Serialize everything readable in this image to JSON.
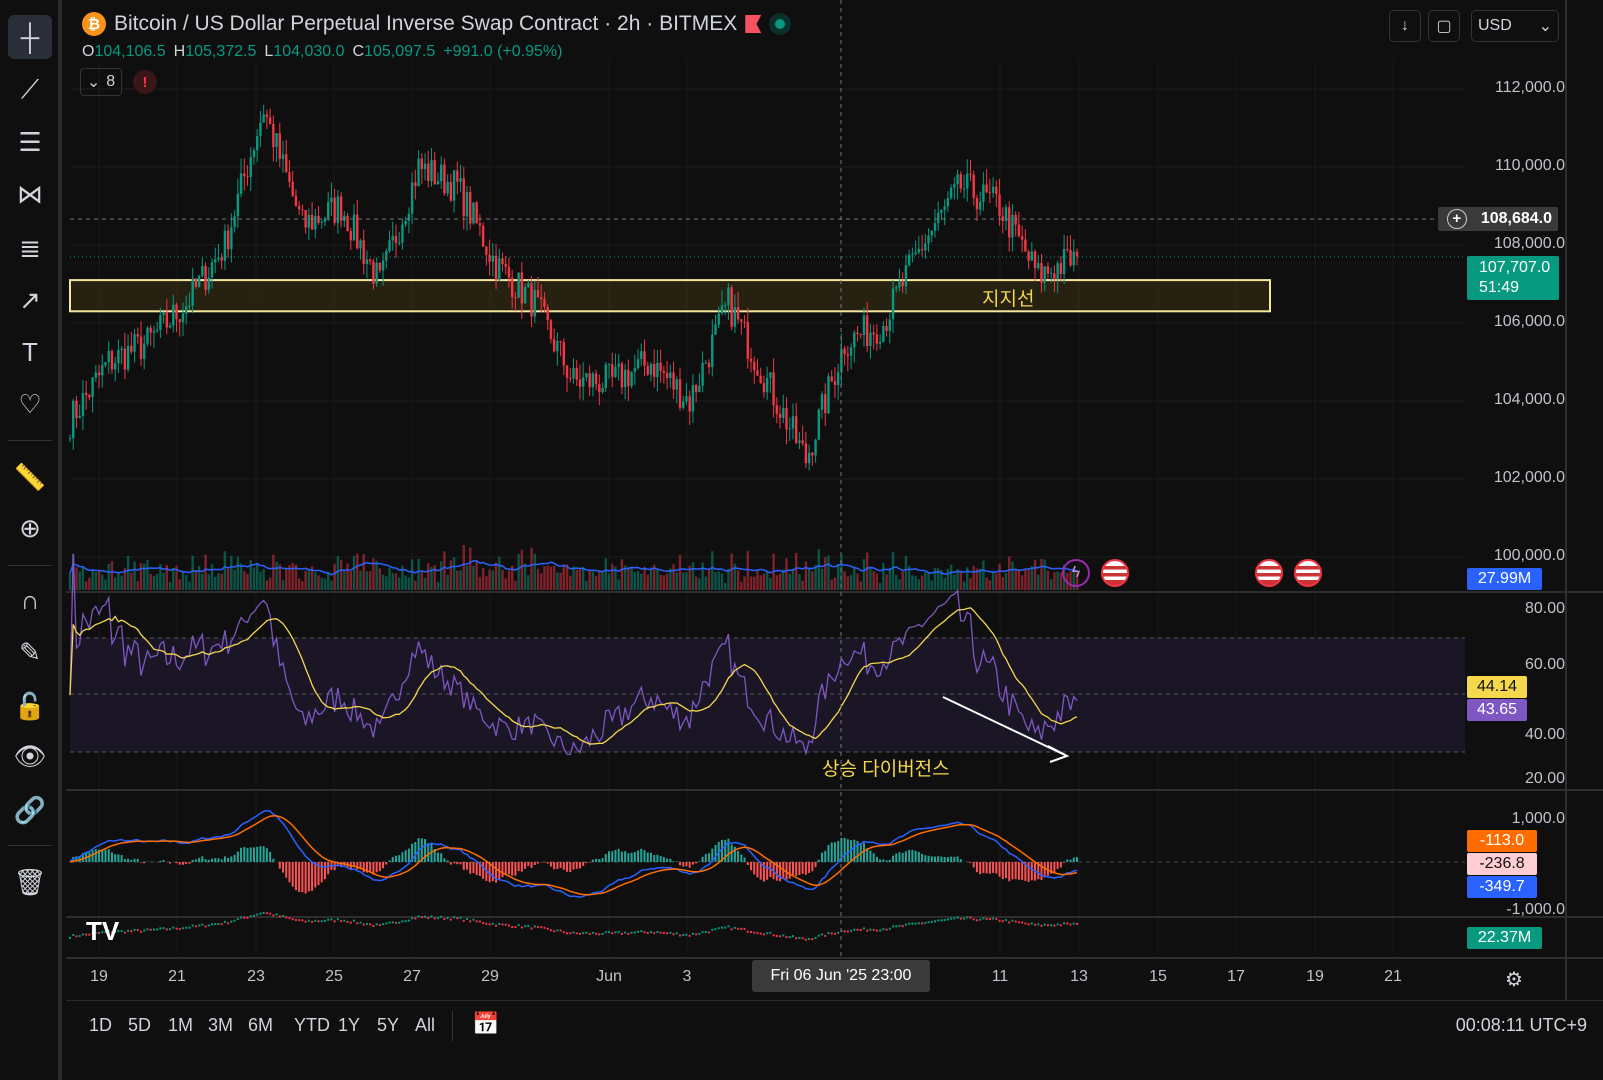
{
  "header": {
    "symbol_icon": "bitcoin-icon",
    "title": "Bitcoin / US Dollar Perpetual Inverse Swap Contract · 2h · BITMEX",
    "ohlc": {
      "o_label": "O",
      "o": "104,106.5",
      "h_label": "H",
      "h": "105,372.5",
      "l_label": "L",
      "l": "104,030.0",
      "c_label": "C",
      "c": "105,097.5",
      "change": "+991.0 (+0.95%)"
    },
    "indicators_count": "8",
    "alert": "!"
  },
  "top_right": {
    "currency": "USD"
  },
  "price_axis": [
    "112,000.0",
    "110,000.0",
    "108,000.0",
    "106,000.0",
    "104,000.0",
    "102,000.0",
    "100,000.0"
  ],
  "crosshair_price": "108,684.0",
  "last_price": {
    "value": "107,707.0",
    "countdown": "51:49"
  },
  "volume_label": "27.99M",
  "rsi_axis": [
    "80.00",
    "60.00",
    "40.00",
    "20.00"
  ],
  "rsi_values": {
    "ma": "44.14",
    "rsi": "43.65"
  },
  "macd_axis": [
    "1,000.0",
    "-1,000.0"
  ],
  "macd_values": {
    "signal": "-113.0",
    "hist": "-236.8",
    "macd": "-349.7"
  },
  "bottom_pane_label": "22.37M",
  "time_axis": [
    "19",
    "21",
    "23",
    "25",
    "27",
    "29",
    "Jun",
    "3",
    "11",
    "13",
    "15",
    "17",
    "19",
    "21"
  ],
  "crosshair_time": "Fri 06 Jun '25   23:00",
  "annotations": {
    "support": "지지선",
    "divergence": "상승 다이버전스"
  },
  "ranges": [
    "1D",
    "5D",
    "1M",
    "3M",
    "6M",
    "YTD",
    "1Y",
    "5Y",
    "All"
  ],
  "clock": "00:08:11 UTC+9",
  "colors": {
    "up": "#089981",
    "down": "#f23645",
    "rsi": "#7e57c2",
    "rsi_ma": "#f5d84b",
    "macd": "#2962ff",
    "signal": "#ff6d00",
    "support_border": "#f5e6a0"
  },
  "chart_data": {
    "type": "candlestick",
    "interval": "2h",
    "price_range": [
      99000,
      113000
    ],
    "price_path": [
      {
        "t": "May 18",
        "close": 103500
      },
      {
        "t": "May 19",
        "close": 105000
      },
      {
        "t": "May 20",
        "close": 105500
      },
      {
        "t": "May 21",
        "close": 106500
      },
      {
        "t": "May 22",
        "close": 108000
      },
      {
        "t": "May 23",
        "close": 111500
      },
      {
        "t": "May 24",
        "close": 108500
      },
      {
        "t": "May 25",
        "close": 109000
      },
      {
        "t": "May 26",
        "close": 107000
      },
      {
        "t": "May 27",
        "close": 110000
      },
      {
        "t": "May 28",
        "close": 109500
      },
      {
        "t": "May 29",
        "close": 107500
      },
      {
        "t": "May 30",
        "close": 106500
      },
      {
        "t": "May 31",
        "close": 104500
      },
      {
        "t": "Jun 1",
        "close": 104500
      },
      {
        "t": "Jun 2",
        "close": 105000
      },
      {
        "t": "Jun 3",
        "close": 104000
      },
      {
        "t": "Jun 4",
        "close": 106500
      },
      {
        "t": "Jun 5",
        "close": 104500
      },
      {
        "t": "Jun 6",
        "close": 102500
      },
      {
        "t": "Jun 7",
        "close": 105500
      },
      {
        "t": "Jun 8",
        "close": 106000
      },
      {
        "t": "Jun 9",
        "close": 108000
      },
      {
        "t": "Jun 10",
        "close": 109500
      },
      {
        "t": "Jun 11",
        "close": 109000
      },
      {
        "t": "Jun 12",
        "close": 107200
      },
      {
        "t": "Jun 13",
        "close": 107707
      }
    ],
    "support_zone": [
      106300,
      107100
    ],
    "rsi_band": [
      30,
      70
    ]
  }
}
